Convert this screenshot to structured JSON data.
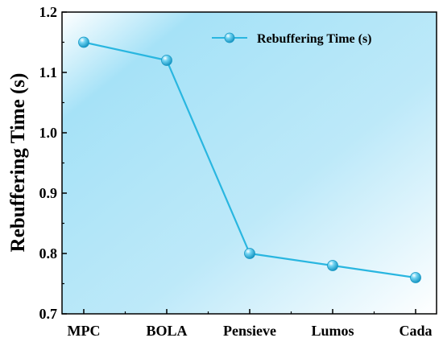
{
  "chart_data": {
    "type": "line",
    "categories": [
      "MPC",
      "BOLA",
      "Pensieve",
      "Lumos",
      "Cada"
    ],
    "series": [
      {
        "name": "Rebuffering Time (s)",
        "values": [
          1.15,
          1.12,
          0.8,
          0.78,
          0.76
        ]
      }
    ],
    "xlabel": "",
    "ylabel": "Rebuffering Time (s)",
    "ylim": [
      0.7,
      1.2
    ],
    "yticks": [
      "0.7",
      "0.8",
      "0.9",
      "1.0",
      "1.1",
      "1.2"
    ],
    "legend": "top-right",
    "grid": false
  },
  "colors": {
    "line": "#29b6e0",
    "marker": "#1ea8d6",
    "background_start": "#a9e3f7",
    "background_end": "#ffffff"
  }
}
